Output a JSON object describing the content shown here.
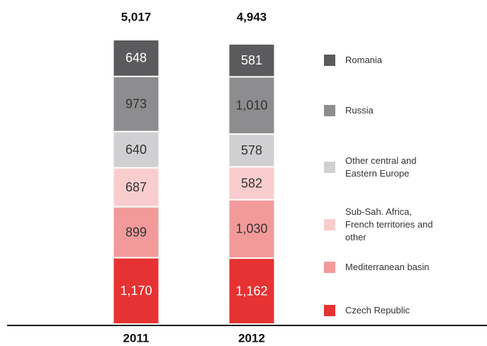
{
  "chart_data": {
    "type": "stacked_bar",
    "categories": [
      "2011",
      "2012"
    ],
    "totals": [
      5017,
      4943
    ],
    "total_labels": [
      "5,017",
      "4,943"
    ],
    "series": [
      {
        "name": "Czech Republic",
        "color": "#e63232",
        "label_color": "#ffffff",
        "values": [
          1170,
          1162
        ],
        "value_labels": [
          "1,170",
          "1,162"
        ]
      },
      {
        "name": "Mediterranean basin",
        "color": "#f29a9a",
        "label_color": "#333333",
        "values": [
          899,
          1030
        ],
        "value_labels": [
          "899",
          "1,030"
        ]
      },
      {
        "name": "Sub-Sah. Africa, French territories and other",
        "color": "#f9cdcd",
        "label_color": "#333333",
        "values": [
          687,
          582
        ],
        "value_labels": [
          "687",
          "582"
        ]
      },
      {
        "name": "Other central and Eastern Europe",
        "color": "#d0d0d2",
        "label_color": "#333333",
        "values": [
          640,
          578
        ],
        "value_labels": [
          "640",
          "578"
        ]
      },
      {
        "name": "Russia",
        "color": "#8d8d8f",
        "label_color": "#333333",
        "values": [
          973,
          1010
        ],
        "value_labels": [
          "973",
          "1,010"
        ]
      },
      {
        "name": "Romania",
        "color": "#5b5b5d",
        "label_color": "#ffffff",
        "values": [
          648,
          581
        ],
        "value_labels": [
          "648",
          "581"
        ]
      }
    ]
  }
}
